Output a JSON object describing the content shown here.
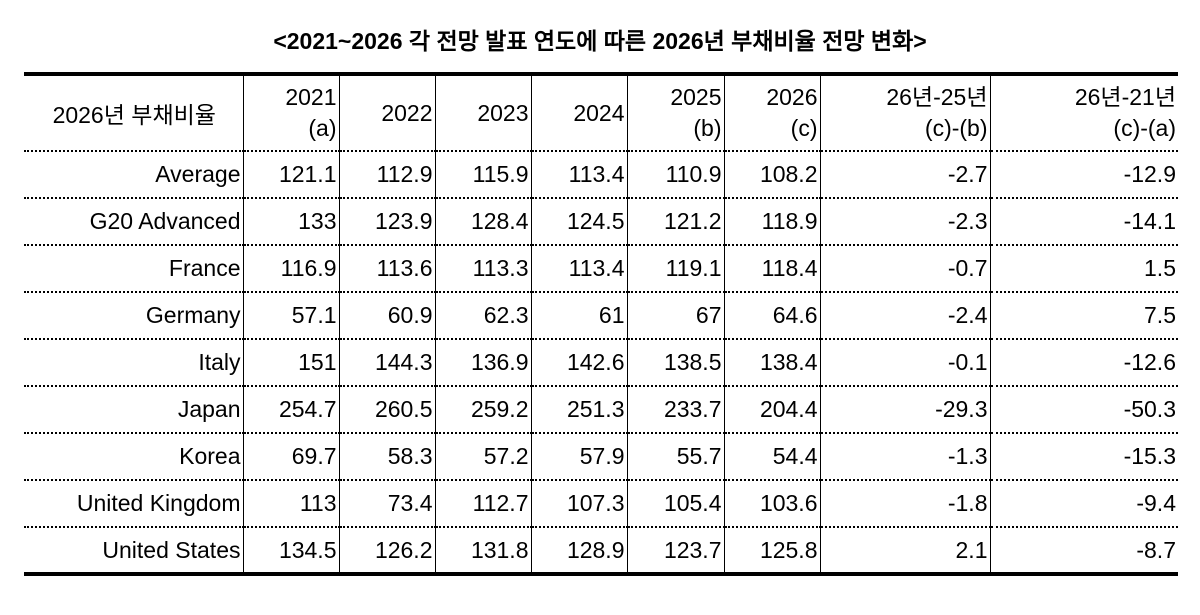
{
  "title": "<2021~2026 각 전망 발표 연도에 따른 2026년 부채비율 전망 변화>",
  "table": {
    "corner_label": "2026년 부채비율",
    "columns": [
      {
        "top": "2021",
        "bottom": "(a)"
      },
      {
        "top": "2022",
        "bottom": ""
      },
      {
        "top": "2023",
        "bottom": ""
      },
      {
        "top": "2024",
        "bottom": ""
      },
      {
        "top": "2025",
        "bottom": "(b)"
      },
      {
        "top": "2026",
        "bottom": "(c)"
      },
      {
        "top": "26년-25년",
        "bottom": "(c)-(b)"
      },
      {
        "top": "26년-21년",
        "bottom": "(c)-(a)"
      }
    ],
    "rows": [
      {
        "label": "Average",
        "values": [
          "121.1",
          "112.9",
          "115.9",
          "113.4",
          "110.9",
          "108.2",
          "-2.7",
          "-12.9"
        ]
      },
      {
        "label": "G20 Advanced",
        "values": [
          "133",
          "123.9",
          "128.4",
          "124.5",
          "121.2",
          "118.9",
          "-2.3",
          "-14.1"
        ]
      },
      {
        "label": "France",
        "values": [
          "116.9",
          "113.6",
          "113.3",
          "113.4",
          "119.1",
          "118.4",
          "-0.7",
          "1.5"
        ]
      },
      {
        "label": "Germany",
        "values": [
          "57.1",
          "60.9",
          "62.3",
          "61",
          "67",
          "64.6",
          "-2.4",
          "7.5"
        ]
      },
      {
        "label": "Italy",
        "values": [
          "151",
          "144.3",
          "136.9",
          "142.6",
          "138.5",
          "138.4",
          "-0.1",
          "-12.6"
        ]
      },
      {
        "label": "Japan",
        "values": [
          "254.7",
          "260.5",
          "259.2",
          "251.3",
          "233.7",
          "204.4",
          "-29.3",
          "-50.3"
        ]
      },
      {
        "label": "Korea",
        "values": [
          "69.7",
          "58.3",
          "57.2",
          "57.9",
          "55.7",
          "54.4",
          "-1.3",
          "-15.3"
        ]
      },
      {
        "label": "United Kingdom",
        "values": [
          "113",
          "73.4",
          "112.7",
          "107.3",
          "105.4",
          "103.6",
          "-1.8",
          "-9.4"
        ]
      },
      {
        "label": "United States",
        "values": [
          "134.5",
          "126.2",
          "131.8",
          "128.9",
          "123.7",
          "125.8",
          "2.1",
          "-8.7"
        ]
      }
    ]
  }
}
